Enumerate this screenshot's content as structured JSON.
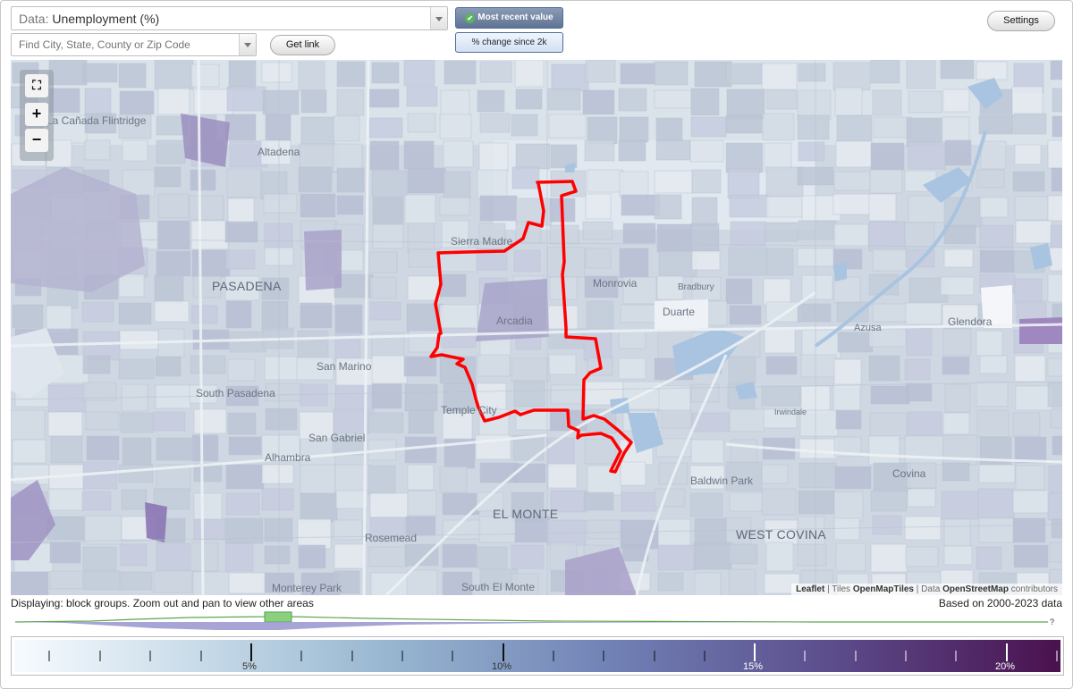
{
  "controls": {
    "data_prefix": "Data:",
    "data_value": "Unemployment (%)",
    "search_placeholder": "Find City, State, County or Zip Code",
    "get_link_label": "Get link",
    "most_recent_label": "Most recent value",
    "pct_change_label": "% change since 2k",
    "settings_label": "Settings"
  },
  "map": {
    "places": [
      {
        "name": "La Cañada Flintridge"
      },
      {
        "name": "Altadena"
      },
      {
        "name": "Sierra Madre"
      },
      {
        "name": "PASADENA"
      },
      {
        "name": "Monrovia"
      },
      {
        "name": "Bradbury"
      },
      {
        "name": "Duarte"
      },
      {
        "name": "Arcadia"
      },
      {
        "name": "Azusa"
      },
      {
        "name": "Glendora"
      },
      {
        "name": "San Marino"
      },
      {
        "name": "South Pasadena"
      },
      {
        "name": "Temple City"
      },
      {
        "name": "Irwindale"
      },
      {
        "name": "San Gabriel"
      },
      {
        "name": "Alhambra"
      },
      {
        "name": "Baldwin Park"
      },
      {
        "name": "Covina"
      },
      {
        "name": "EL MONTE"
      },
      {
        "name": "Rosemead"
      },
      {
        "name": "WEST COVINA"
      },
      {
        "name": "Monterey Park"
      },
      {
        "name": "South El Monte"
      }
    ],
    "attribution": {
      "leaflet": "Leaflet",
      "tiles_prefix": "| Tiles",
      "tiles": "OpenMapTiles",
      "data_prefix": "| Data",
      "data": "OpenStreetMap",
      "suffix": "contributors"
    }
  },
  "footer": {
    "displaying": "Displaying: block groups. Zoom out and pan to view other areas",
    "based_on": "Based on 2000-2023 data",
    "histogram_marker": "?"
  },
  "legend": {
    "ticks": [
      "5%",
      "10%",
      "15%",
      "20%"
    ],
    "colors": {
      "low": "#f7fbff",
      "mid": "#6f7fb4",
      "high": "#4a114e"
    }
  },
  "colors": {
    "boundary": "#ff0000",
    "water": "#a9c4e0",
    "accent_green": "#4caf50"
  }
}
